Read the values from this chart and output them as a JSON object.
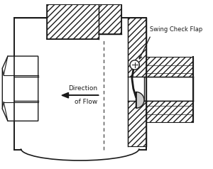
{
  "bg_color": "#ffffff",
  "line_color": "#1a1a1a",
  "lw": 1.0,
  "label_swing": "Swing Check Flap",
  "label_flow_line1": "Direction",
  "label_flow_line2": "of Flow",
  "hatch": "////"
}
